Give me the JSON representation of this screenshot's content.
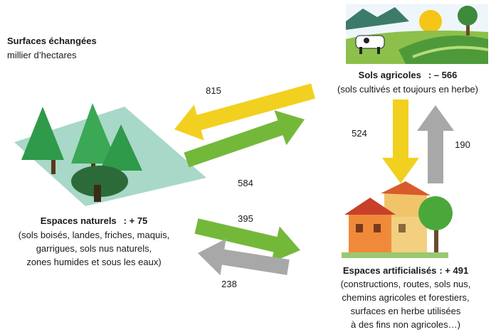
{
  "header": {
    "title": "Surfaces échangées",
    "subtitle": "millier d’hectares"
  },
  "nodes": [
    {
      "label": "Sols agricoles",
      "balance": ": – 566",
      "description": [
        "(sols cultivés et toujours en herbe)"
      ]
    },
    {
      "label": "Espaces naturels",
      "balance": ": + 75",
      "description": [
        "(sols boisés, landes, friches, maquis,",
        "garrigues, sols nus naturels,",
        "zones humides et sous les eaux)"
      ]
    },
    {
      "label": "Espaces artificialisés",
      "balance": ": + 491",
      "description": [
        "(constructions, routes, sols nus,",
        "chemins agricoles et forestiers,",
        "surfaces en herbe utilisées",
        "à des fins non agricoles…)"
      ]
    }
  ],
  "flows": [
    {
      "label": "815"
    },
    {
      "label": "584"
    },
    {
      "label": "524"
    },
    {
      "label": "190"
    },
    {
      "label": "395"
    },
    {
      "label": "238"
    }
  ]
}
